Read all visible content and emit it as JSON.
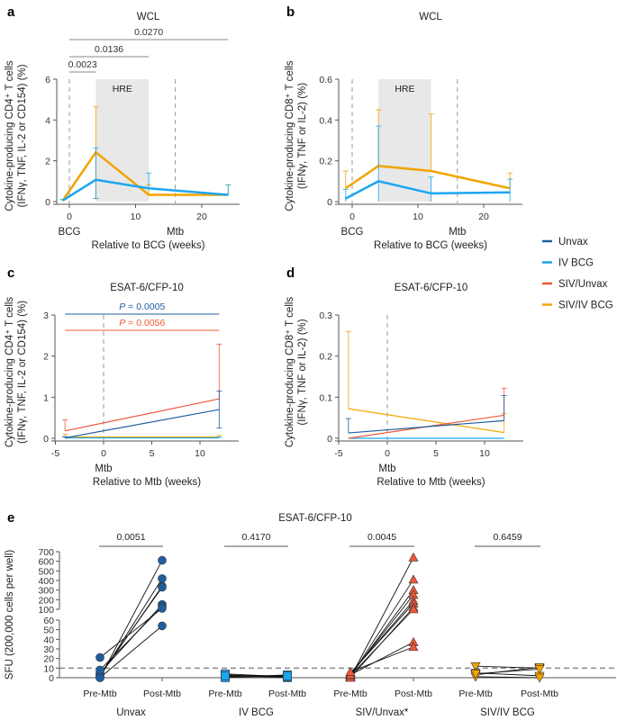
{
  "legend": [
    {
      "name": "Unvax",
      "color": "#1f5fa0"
    },
    {
      "name": "IV BCG",
      "color": "#1ba6f2"
    },
    {
      "name": "SIV/Unvax",
      "color": "#f0583a"
    },
    {
      "name": "SIV/IV BCG",
      "color": "#f2a400"
    }
  ],
  "chart_data": [
    {
      "panel": "a",
      "type": "line",
      "title": "WCL",
      "xlabel": "Relative to BCG (weeks)",
      "ylabel": [
        "Cytokine-producing CD4⁺ T cells",
        "(IFNγ, TNF, IL-2 or CD154) (%)"
      ],
      "xticks": [
        0,
        10,
        20
      ],
      "yticks": [
        0,
        2,
        4,
        6
      ],
      "xlim": [
        -2,
        26
      ],
      "ylim": [
        0,
        6
      ],
      "markers": [
        {
          "x": 0,
          "label": "BCG"
        },
        {
          "x": 16,
          "label": "Mtb"
        }
      ],
      "shaded": {
        "x": [
          4,
          12
        ],
        "label": "HRE"
      },
      "series": [
        {
          "name": "SIV/IV BCG",
          "x": [
            -1,
            4,
            12,
            24
          ],
          "y": [
            0.05,
            2.42,
            0.33,
            0.33
          ],
          "err_upper": [
            0.1,
            4.65,
            0.82,
            0.82
          ],
          "err_lower": [
            null,
            0.15,
            null,
            null
          ]
        },
        {
          "name": "IV BCG",
          "x": [
            -1,
            4,
            12,
            24
          ],
          "y": [
            0.05,
            1.07,
            0.65,
            0.33
          ],
          "err_upper": [
            0.1,
            2.63,
            1.4,
            0.82
          ],
          "err_lower": [
            null,
            0.15,
            null,
            null
          ]
        }
      ],
      "comparisons": [
        {
          "x": [
            0,
            4
          ],
          "value": "0.0023"
        },
        {
          "x": [
            0,
            12
          ],
          "value": "0.0136"
        },
        {
          "x": [
            0,
            24
          ],
          "value": "0.0270"
        }
      ]
    },
    {
      "panel": "b",
      "type": "line",
      "title": "WCL",
      "xlabel": "Relative to BCG (weeks)",
      "ylabel": [
        "Cytokine-producing CD8⁺ T cells",
        "(IFNγ, TNF or IL-2) (%)"
      ],
      "xticks": [
        0,
        10,
        20
      ],
      "yticks": [
        0,
        0.2,
        0.4,
        0.6
      ],
      "xlim": [
        -2,
        26
      ],
      "ylim": [
        0,
        0.6
      ],
      "markers": [
        {
          "x": 0,
          "label": "BCG"
        },
        {
          "x": 16,
          "label": "Mtb"
        }
      ],
      "shaded": {
        "x": [
          4,
          12
        ],
        "label": "HRE"
      },
      "series": [
        {
          "name": "SIV/IV BCG",
          "x": [
            -1,
            4,
            12,
            24
          ],
          "y": [
            0.065,
            0.175,
            0.15,
            0.065
          ],
          "err_upper": [
            0.15,
            0.45,
            0.43,
            0.14
          ],
          "err_lower": [
            null,
            null,
            null,
            null
          ]
        },
        {
          "name": "IV BCG",
          "x": [
            -1,
            4,
            12,
            24
          ],
          "y": [
            0.015,
            0.1,
            0.04,
            0.045
          ],
          "err_upper": [
            0.06,
            0.37,
            0.12,
            0.11
          ],
          "err_lower": [
            0,
            0,
            0,
            0
          ]
        }
      ],
      "comparisons": []
    },
    {
      "panel": "c",
      "type": "line",
      "title": "ESAT-6/CFP-10",
      "xlabel": "Relative to Mtb (weeks)",
      "ylabel": [
        "Cytokine-producing CD4⁺ T cells",
        "(IFNγ, TNF, IL-2 or CD154) (%)"
      ],
      "xticks": [
        -5,
        0,
        5,
        10
      ],
      "yticks": [
        0,
        1,
        2,
        3
      ],
      "xlim": [
        -5,
        14
      ],
      "ylim": [
        0,
        3
      ],
      "markers": [
        {
          "x": 0,
          "label": "Mtb"
        }
      ],
      "series": [
        {
          "name": "SIV/IV BCG",
          "x": [
            -4,
            12
          ],
          "y": [
            0.03,
            0.03
          ],
          "err_upper": [
            0.1,
            0.07
          ],
          "err_lower": [
            null,
            null
          ]
        },
        {
          "name": "IV BCG",
          "x": [
            -4,
            12
          ],
          "y": [
            0.01,
            0.01
          ],
          "err_upper": [
            0.04,
            0.03
          ],
          "err_lower": [
            null,
            null
          ]
        },
        {
          "name": "SIV/Unvax",
          "x": [
            -4,
            12
          ],
          "y": [
            0.18,
            0.96
          ],
          "err_upper": [
            0.45,
            2.29
          ],
          "err_lower": [
            null,
            null
          ]
        },
        {
          "name": "Unvax",
          "x": [
            -4,
            12
          ],
          "y": [
            0.01,
            0.7
          ],
          "err_upper": [
            0.03,
            1.15
          ],
          "err_lower": [
            null,
            0.25
          ]
        }
      ],
      "comparisons": [
        {
          "x": [
            -4,
            12
          ],
          "symbol": "P",
          "value": " = 0.0005",
          "series": "Unvax"
        },
        {
          "x": [
            -4,
            12
          ],
          "symbol": "P",
          "value": " = 0.0056",
          "series": "SIV/Unvax"
        }
      ]
    },
    {
      "panel": "d",
      "type": "line",
      "title": "ESAT-6/CFP-10",
      "xlabel": "Relative to Mtb (weeks)",
      "ylabel": [
        "Cytokine-producing CD8⁺ T cells",
        "(IFNγ, TNF or IL-2) (%)"
      ],
      "xticks": [
        -5,
        0,
        5,
        10
      ],
      "yticks": [
        0,
        0.1,
        0.2,
        0.3
      ],
      "xlim": [
        -5,
        14
      ],
      "ylim": [
        0,
        0.3
      ],
      "markers": [
        {
          "x": 0,
          "label": "Mtb"
        }
      ],
      "series": [
        {
          "name": "IV BCG",
          "x": [
            -4,
            12
          ],
          "y": [
            0,
            0
          ],
          "err_upper": [
            null,
            null
          ],
          "err_lower": [
            null,
            null
          ]
        },
        {
          "name": "SIV/IV BCG",
          "x": [
            -4,
            12
          ],
          "y": [
            0.072,
            0.014
          ],
          "err_upper": [
            0.26,
            0.06
          ],
          "err_lower": [
            null,
            null
          ]
        },
        {
          "name": "SIV/Unvax",
          "x": [
            -4,
            12
          ],
          "y": [
            0.0,
            0.056
          ],
          "err_upper": [
            null,
            0.122
          ],
          "err_lower": [
            null,
            null
          ]
        },
        {
          "name": "Unvax",
          "x": [
            -4,
            12
          ],
          "y": [
            0.013,
            0.043
          ],
          "err_upper": [
            0.048,
            0.104
          ],
          "err_lower": [
            null,
            null
          ]
        }
      ],
      "comparisons": []
    },
    {
      "panel": "e",
      "type": "scatter",
      "title": "ESAT-6/CFP-10",
      "ylabel": "SFU (200,000 cells per well)",
      "yticks_upper": [
        100,
        200,
        300,
        400,
        500,
        600,
        700
      ],
      "yticks_lower": [
        0,
        10,
        20,
        30,
        40,
        50,
        60
      ],
      "axis_break": [
        60,
        100
      ],
      "threshold": 10,
      "timepoints": [
        "Pre-Mtb",
        "Post-Mtb"
      ],
      "groups": [
        {
          "name": "Unvax",
          "color": "#1f5fa0",
          "marker": "circle",
          "p": "0.0051",
          "pre": [
            0,
            1,
            2,
            3,
            5,
            8,
            21,
            0
          ],
          "post": [
            610,
            420,
            340,
            330,
            150,
            130,
            110,
            54
          ]
        },
        {
          "name": "IV BCG",
          "color": "#1ba6f2",
          "marker": "square",
          "p": "0.4170",
          "pre": [
            1,
            2,
            3,
            0,
            4,
            2
          ],
          "post": [
            1,
            2,
            0,
            3,
            1,
            2
          ]
        },
        {
          "name": "SIV/Unvax*",
          "color": "#f0583a",
          "marker": "triangle-up",
          "p": "0.0045",
          "pre": [
            0,
            1,
            2,
            3,
            4,
            5,
            0,
            2,
            3,
            6
          ],
          "post": [
            640,
            410,
            300,
            250,
            190,
            160,
            120,
            100,
            37,
            32
          ]
        },
        {
          "name": "SIV/IV BCG",
          "color": "#f2a400",
          "marker": "triangle-down",
          "p": "0.6459",
          "pre": [
            12,
            5,
            3,
            1,
            4
          ],
          "post": [
            10,
            2,
            11,
            0,
            9
          ]
        }
      ]
    }
  ]
}
